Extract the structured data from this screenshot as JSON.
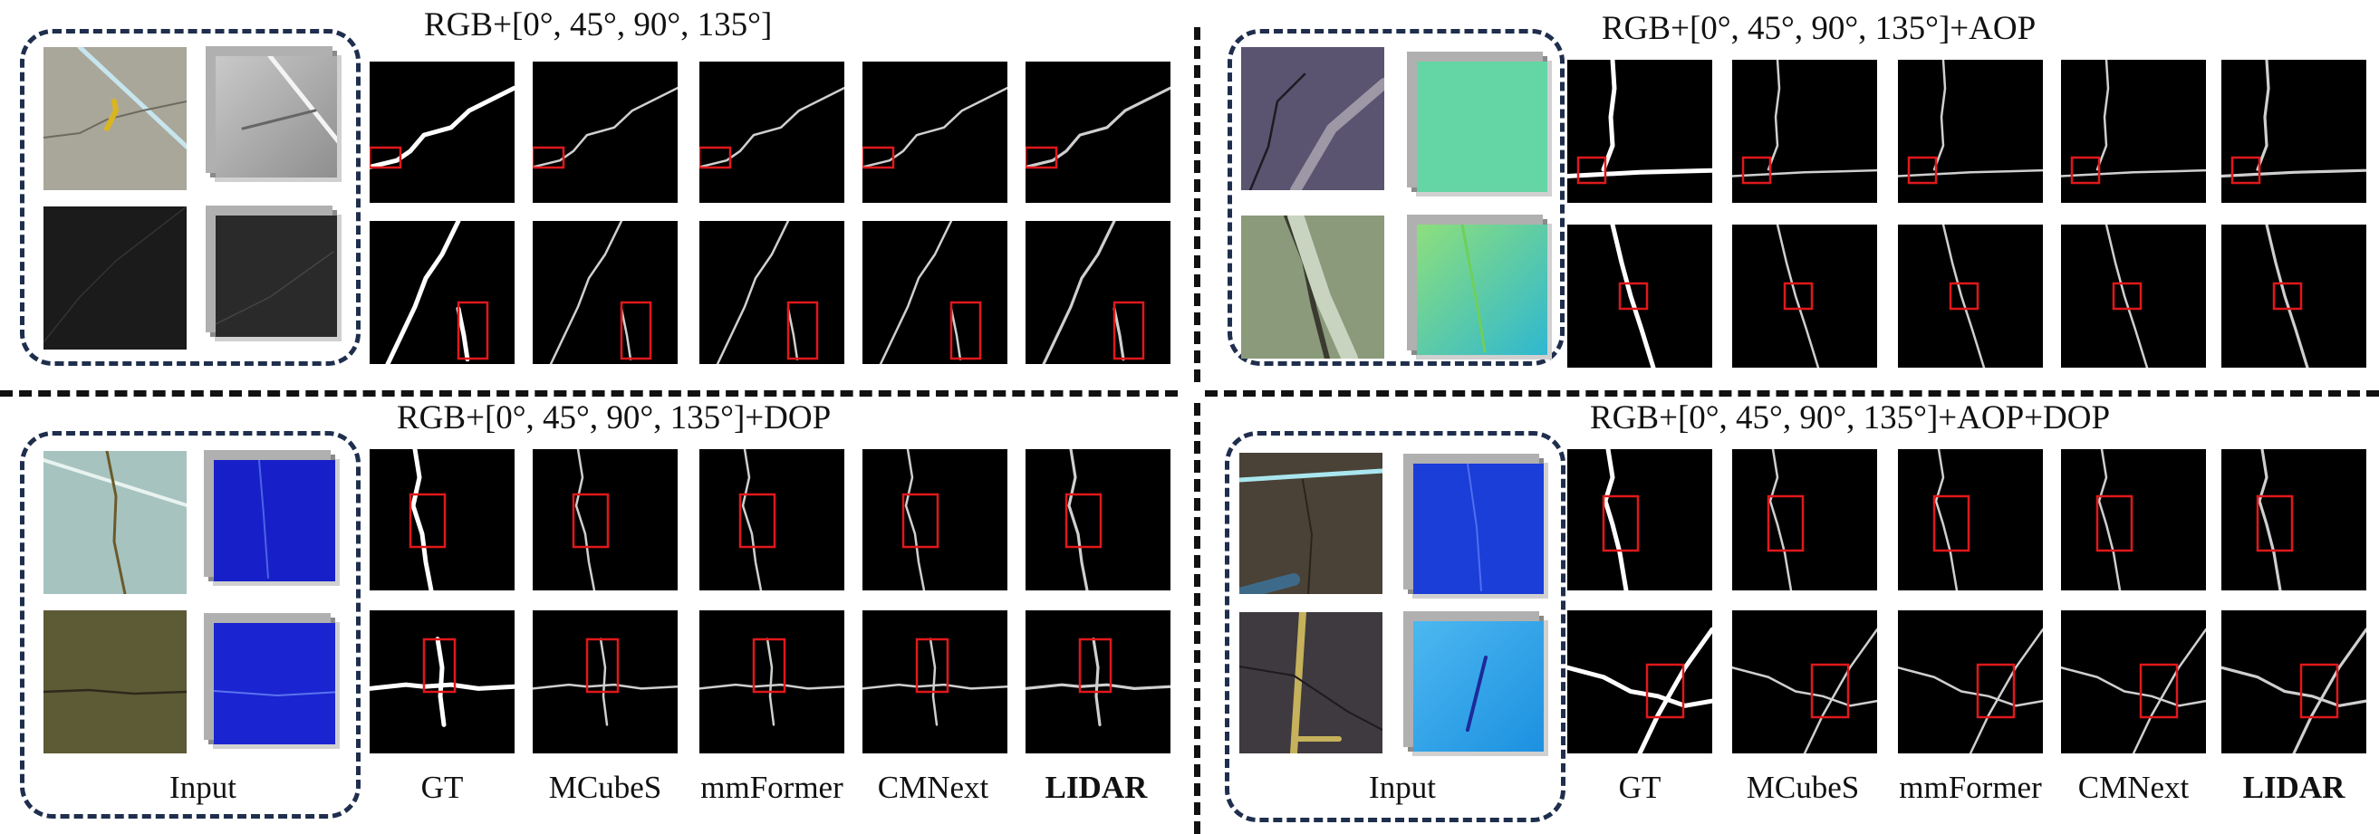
{
  "panels": [
    {
      "id": "tl",
      "title": "RGB+[0°, 45°, 90°, 135°]",
      "extra_input": "dolp-gray"
    },
    {
      "id": "tr",
      "title": "RGB+[0°, 45°, 90°, 135°]+AOP",
      "extra_input": "aop-teal"
    },
    {
      "id": "bl",
      "title": "RGB+[0°, 45°, 90°, 135°]+DOP",
      "extra_input": "dop-blue"
    },
    {
      "id": "br",
      "title": "RGB+[0°, 45°, 90°, 135°]+AOP+DOP",
      "extra_input": "aop-dop"
    }
  ],
  "column_labels": {
    "input": "Input",
    "gt": "GT",
    "mcubes": "MCubeS",
    "mmformer": "mmFormer",
    "cmnext": "CMNext",
    "lidar": "LIDAR"
  },
  "colors": {
    "box_border": "#1f2e4d",
    "highlight": "#e0181b",
    "mask_bg": "#000000",
    "crack": "#f2f2f2"
  }
}
